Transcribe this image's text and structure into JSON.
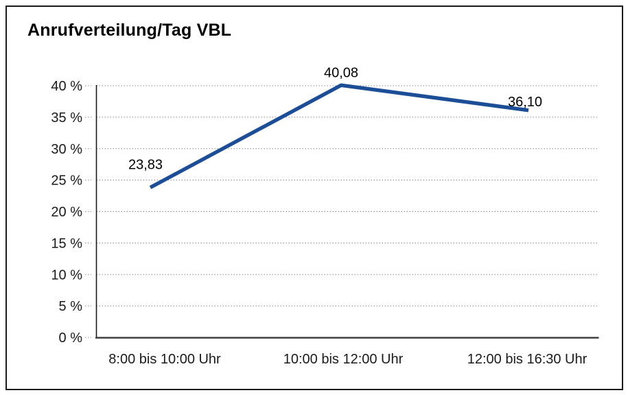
{
  "page": {
    "title": "Anrufverteilung/Tag VBL"
  },
  "chart_data": {
    "type": "line",
    "title": "Anrufverteilung/Tag VBL",
    "categories": [
      "8:00 bis 10:00 Uhr",
      "10:00 bis 12:00 Uhr",
      "12:00 bis 16:30 Uhr"
    ],
    "values": [
      23.83,
      40.08,
      36.1
    ],
    "value_labels": [
      "23,83",
      "40,08",
      "36,10"
    ],
    "xlabel": "",
    "ylabel": "",
    "ylim": [
      0,
      40
    ],
    "ytick_step": 5,
    "ytick_labels": [
      "0 %",
      "5 %",
      "10 %",
      "15 %",
      "20 %",
      "25 %",
      "30 %",
      "35 %",
      "40 %"
    ],
    "grid": true,
    "grid_style": "dotted",
    "legend": false,
    "markers": false,
    "colors": {
      "line": "#1b4e96",
      "grid": "#878787",
      "y_axis": "#1a1a1a",
      "x_axis": "#3f3f3f",
      "text": "#1a1a1a",
      "background": "#ffffff",
      "frame_border": "#1a1a1a"
    }
  }
}
